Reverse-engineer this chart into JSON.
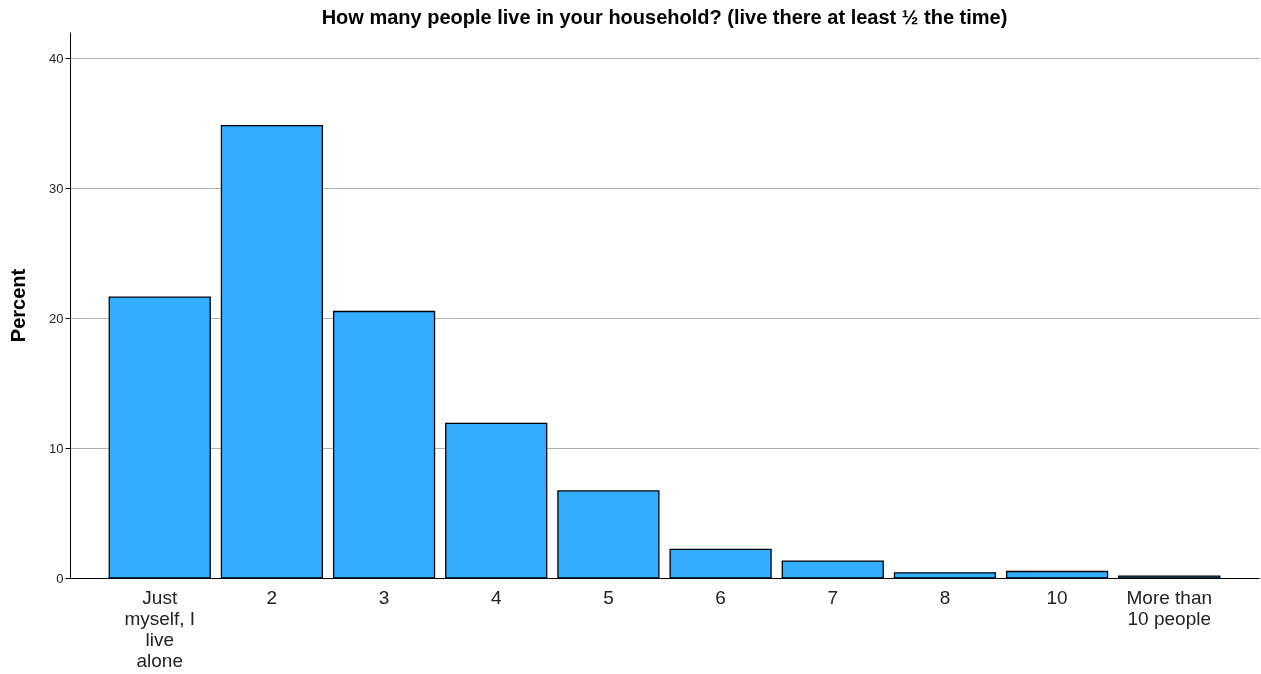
{
  "chart_data": {
    "type": "bar",
    "title": "How many people live in your household? (live there at least ½ the time)",
    "ylabel": "Percent",
    "categories": [
      "Just myself, I live alone",
      "2",
      "3",
      "4",
      "5",
      "6",
      "7",
      "8",
      "10",
      "More than 10 people"
    ],
    "values": [
      21.6,
      34.8,
      20.5,
      11.9,
      6.7,
      2.2,
      1.3,
      0.4,
      0.5,
      0.15
    ],
    "color": "#33adff",
    "ylim": [
      0,
      42
    ],
    "yticks": [
      0,
      10,
      20,
      30,
      40
    ],
    "grid": "y"
  }
}
